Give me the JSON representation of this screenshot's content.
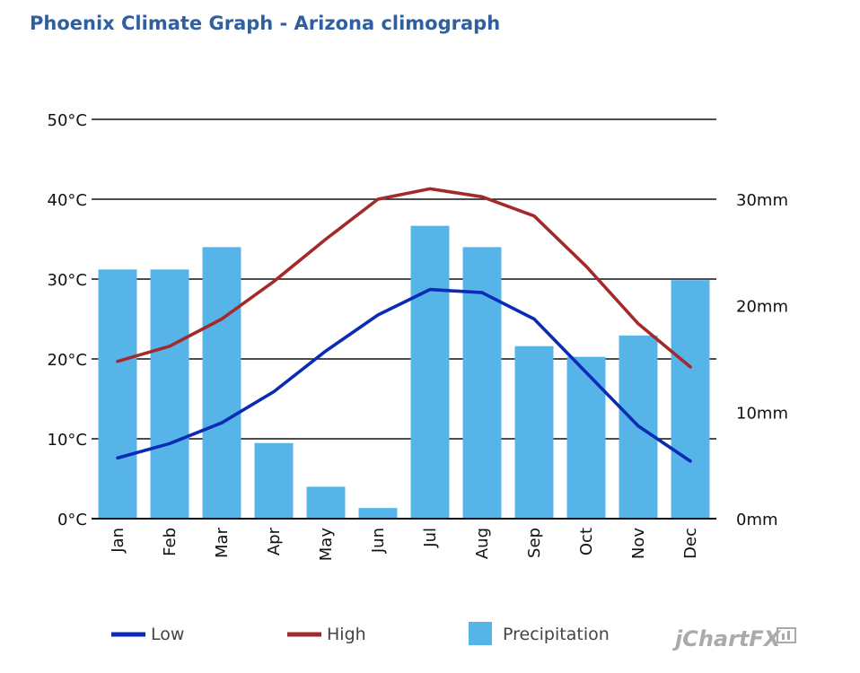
{
  "title": "Phoenix Climate Graph - Arizona climograph",
  "brand": "jChartFX",
  "chart_data": {
    "type": "bar",
    "categories": [
      "Jan",
      "Feb",
      "Mar",
      "Apr",
      "May",
      "Jun",
      "Jul",
      "Aug",
      "Sep",
      "Oct",
      "Nov",
      "Dec"
    ],
    "y_left": {
      "min": 0,
      "max": 50,
      "step": 10,
      "unit": "°C",
      "tick_labels": [
        "0°C",
        "10°C",
        "20°C",
        "30°C",
        "40°C",
        "50°C"
      ]
    },
    "y_right": {
      "min": 0,
      "max": 37.5,
      "ticks": [
        0,
        10,
        20,
        30
      ],
      "unit": "mm",
      "tick_labels": [
        "0mm",
        "10mm",
        "20mm",
        "30mm"
      ]
    },
    "grid": true,
    "legend_position": "bottom",
    "series": [
      {
        "name": "Precipitation",
        "type": "bar",
        "axis": "right",
        "color": "#56b4e9",
        "values": [
          23.4,
          23.4,
          25.5,
          7.1,
          3.0,
          1.0,
          27.5,
          25.5,
          16.2,
          15.2,
          17.2,
          22.4
        ]
      },
      {
        "name": "Low",
        "type": "line",
        "axis": "left",
        "color": "#0a2cb4",
        "values": [
          7.6,
          9.4,
          12.0,
          15.9,
          21.0,
          25.5,
          28.7,
          28.3,
          25.0,
          18.3,
          11.6,
          7.2
        ]
      },
      {
        "name": "High",
        "type": "line",
        "axis": "left",
        "color": "#a32a2a",
        "values": [
          19.7,
          21.6,
          25.0,
          29.7,
          35.0,
          40.0,
          41.3,
          40.3,
          37.9,
          31.6,
          24.4,
          19.0
        ]
      }
    ],
    "legend": [
      {
        "name": "Low",
        "color": "#0a2cb4",
        "swatch": "line"
      },
      {
        "name": "High",
        "color": "#a32a2a",
        "swatch": "line"
      },
      {
        "name": "Precipitation",
        "color": "#56b4e9",
        "swatch": "box"
      }
    ]
  }
}
